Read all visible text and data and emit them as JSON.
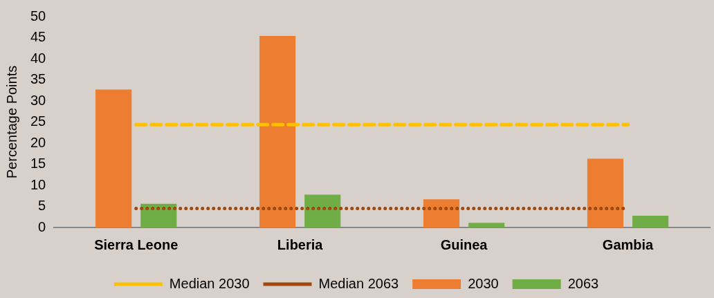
{
  "chart_data": {
    "type": "bar",
    "ylabel": "Percentage Points",
    "categories": [
      "Sierra Leone",
      "Liberia",
      "Guinea",
      "Gambia"
    ],
    "series": [
      {
        "name": "2030",
        "color": "#ed7d31",
        "values": [
          32.7,
          45.4,
          6.7,
          16.3
        ]
      },
      {
        "name": "2063",
        "color": "#70ad47",
        "values": [
          5.6,
          7.8,
          1.1,
          2.8
        ]
      },
      {
        "name": "Median 2030",
        "type": "line",
        "line_style": "dashed",
        "marker": "none",
        "color": "#ffc000",
        "values": [
          24.4,
          24.4,
          24.4,
          24.4
        ]
      },
      {
        "name": "Median 2063",
        "type": "line",
        "line_style": "dotted",
        "marker": "none",
        "color": "#9e480e",
        "values": [
          4.5,
          4.5,
          4.5,
          4.5
        ]
      }
    ],
    "ylim": [
      0,
      50
    ],
    "yticks": [
      0,
      5,
      10,
      15,
      20,
      25,
      30,
      35,
      40,
      45,
      50
    ],
    "grid": false,
    "legend": "bottom"
  }
}
